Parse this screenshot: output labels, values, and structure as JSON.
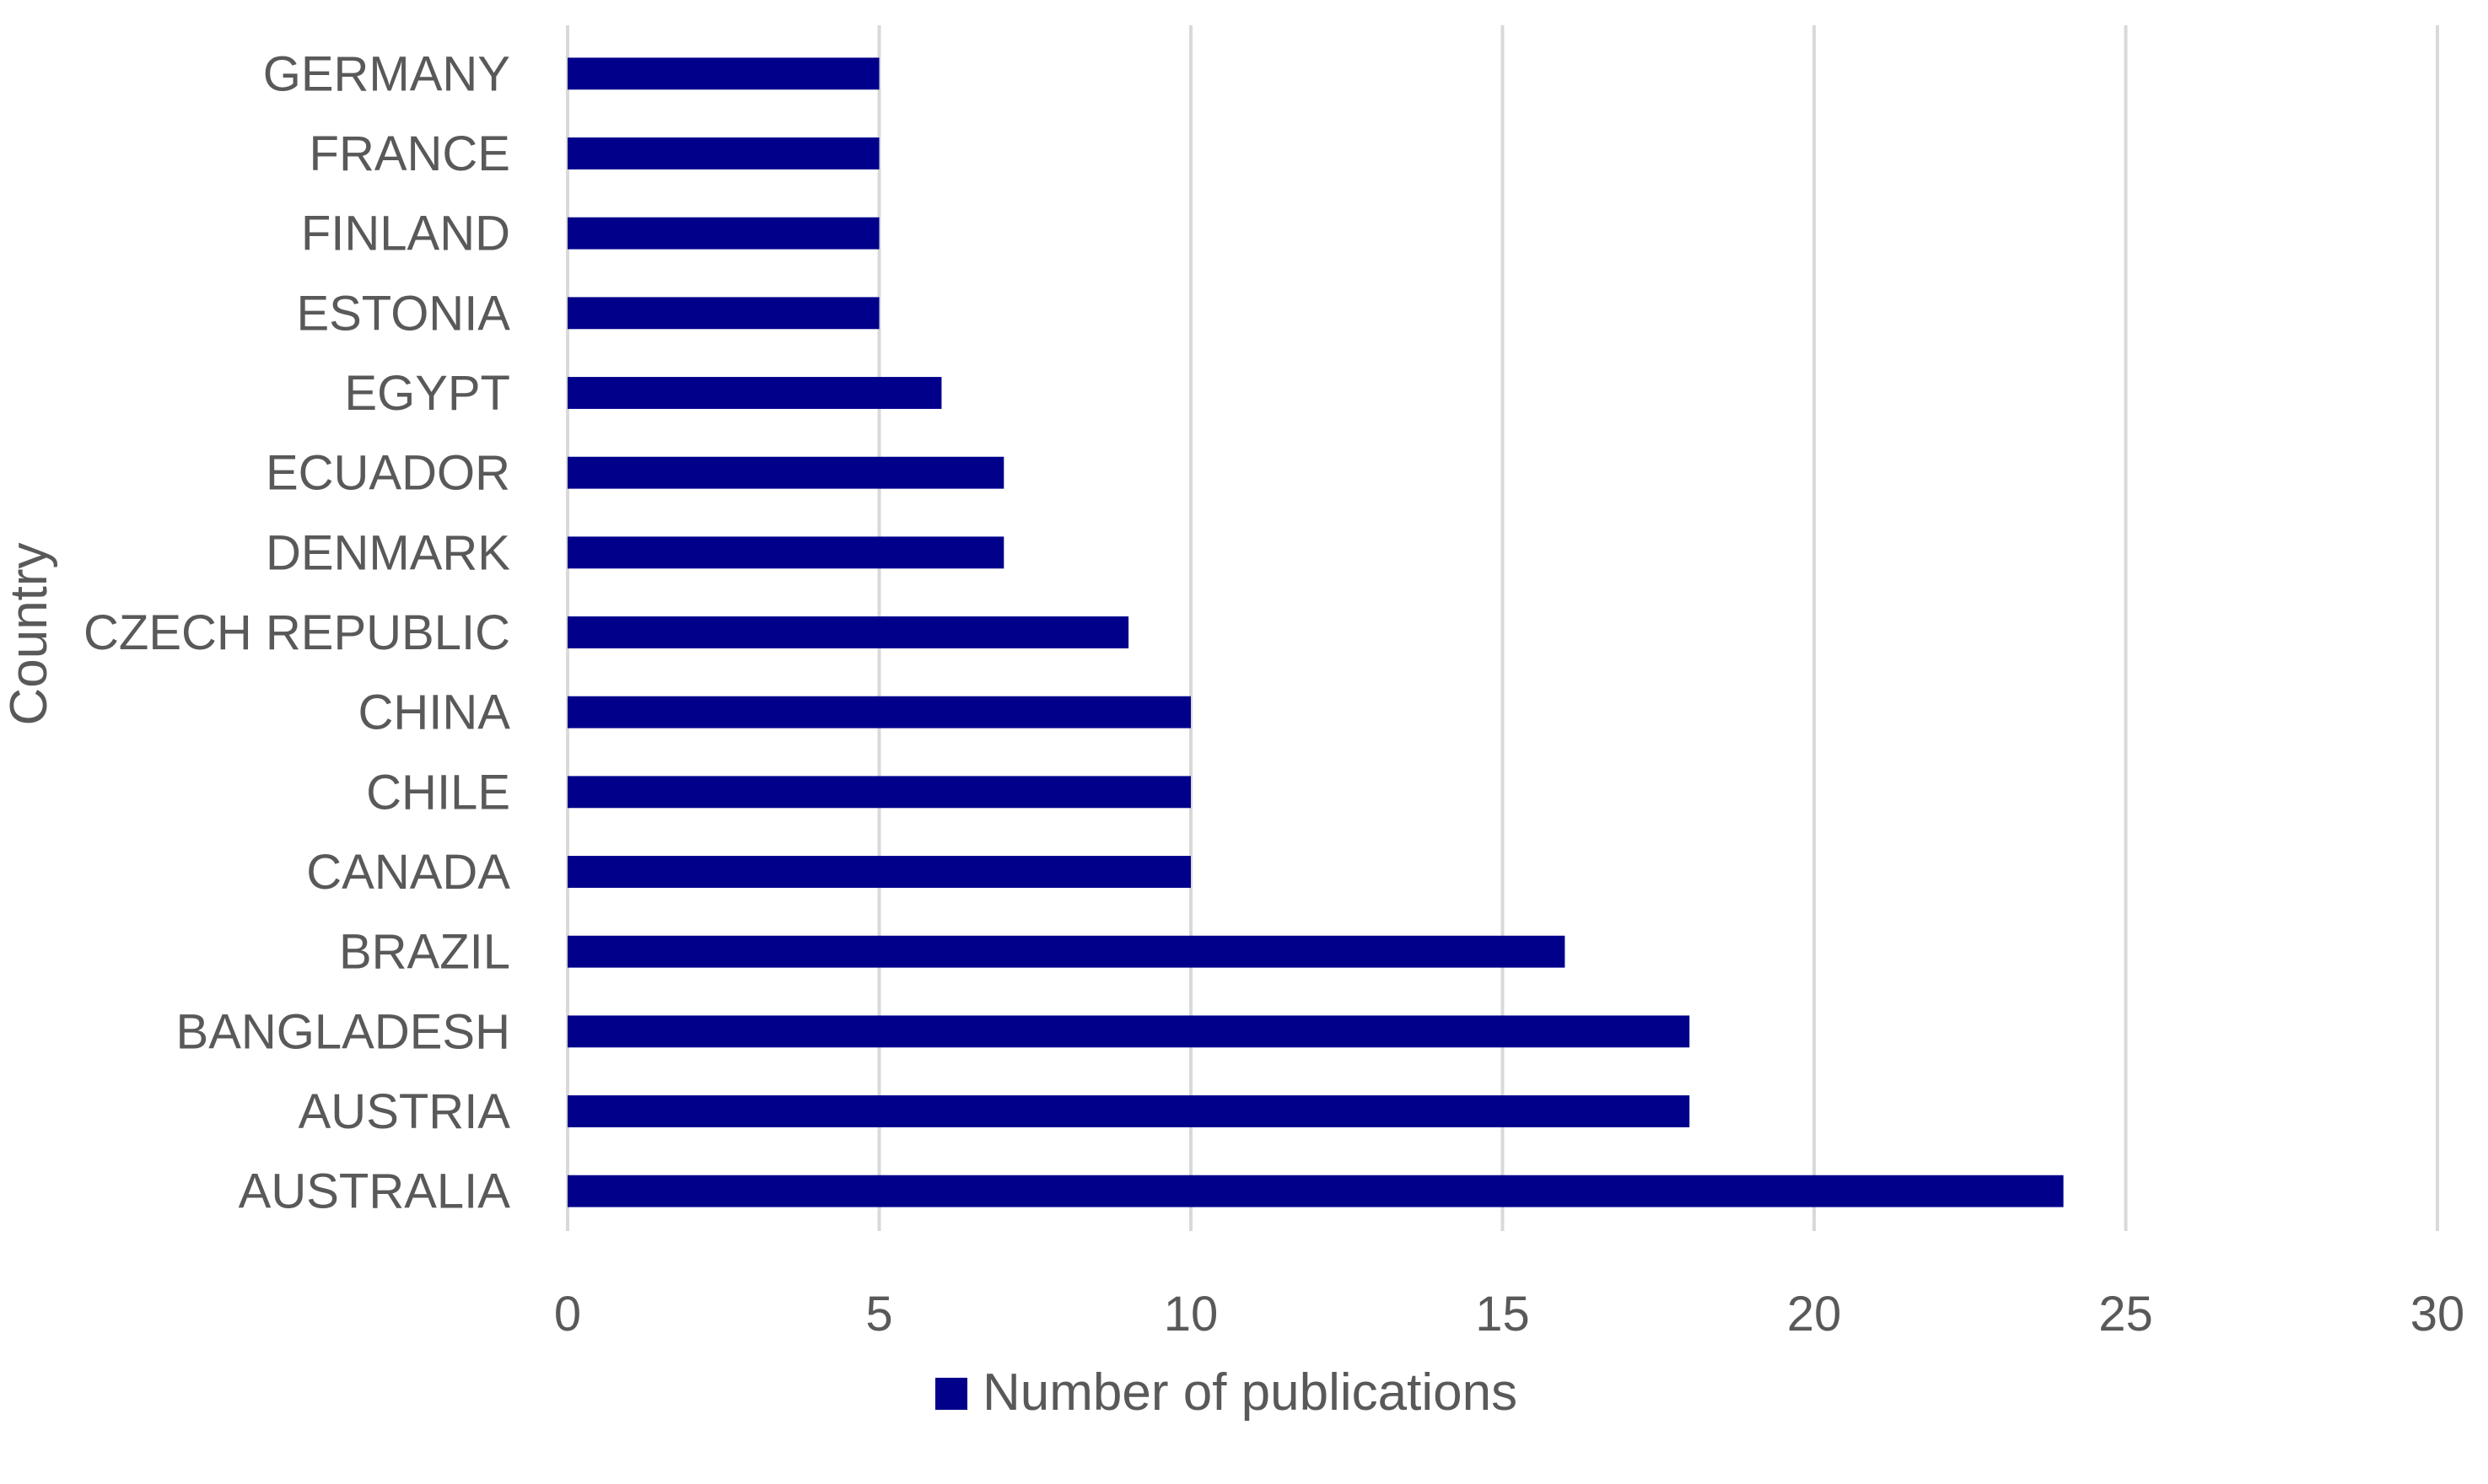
{
  "chart_data": {
    "type": "bar",
    "orientation": "horizontal",
    "categories": [
      "GERMANY",
      "FRANCE",
      "FINLAND",
      "ESTONIA",
      "EGYPT",
      "ECUADOR",
      "DENMARK",
      "CZECH REPUBLIC",
      "CHINA",
      "CHILE",
      "CANADA",
      "BRAZIL",
      "BANGLADESH",
      "AUSTRIA",
      "AUSTRALIA"
    ],
    "series": [
      {
        "name": "Number of publications",
        "values": [
          5,
          5,
          5,
          5,
          6,
          7,
          7,
          9,
          10,
          10,
          10,
          16,
          18,
          18,
          24
        ],
        "color": "#00008B"
      }
    ],
    "title": "",
    "xlabel": "",
    "ylabel": "Country",
    "xlim": [
      0,
      30
    ],
    "xticks": [
      0,
      5,
      10,
      15,
      20,
      25,
      30
    ],
    "grid": true,
    "gridline_color": "#D9D9D9",
    "legend_position": "bottom"
  }
}
